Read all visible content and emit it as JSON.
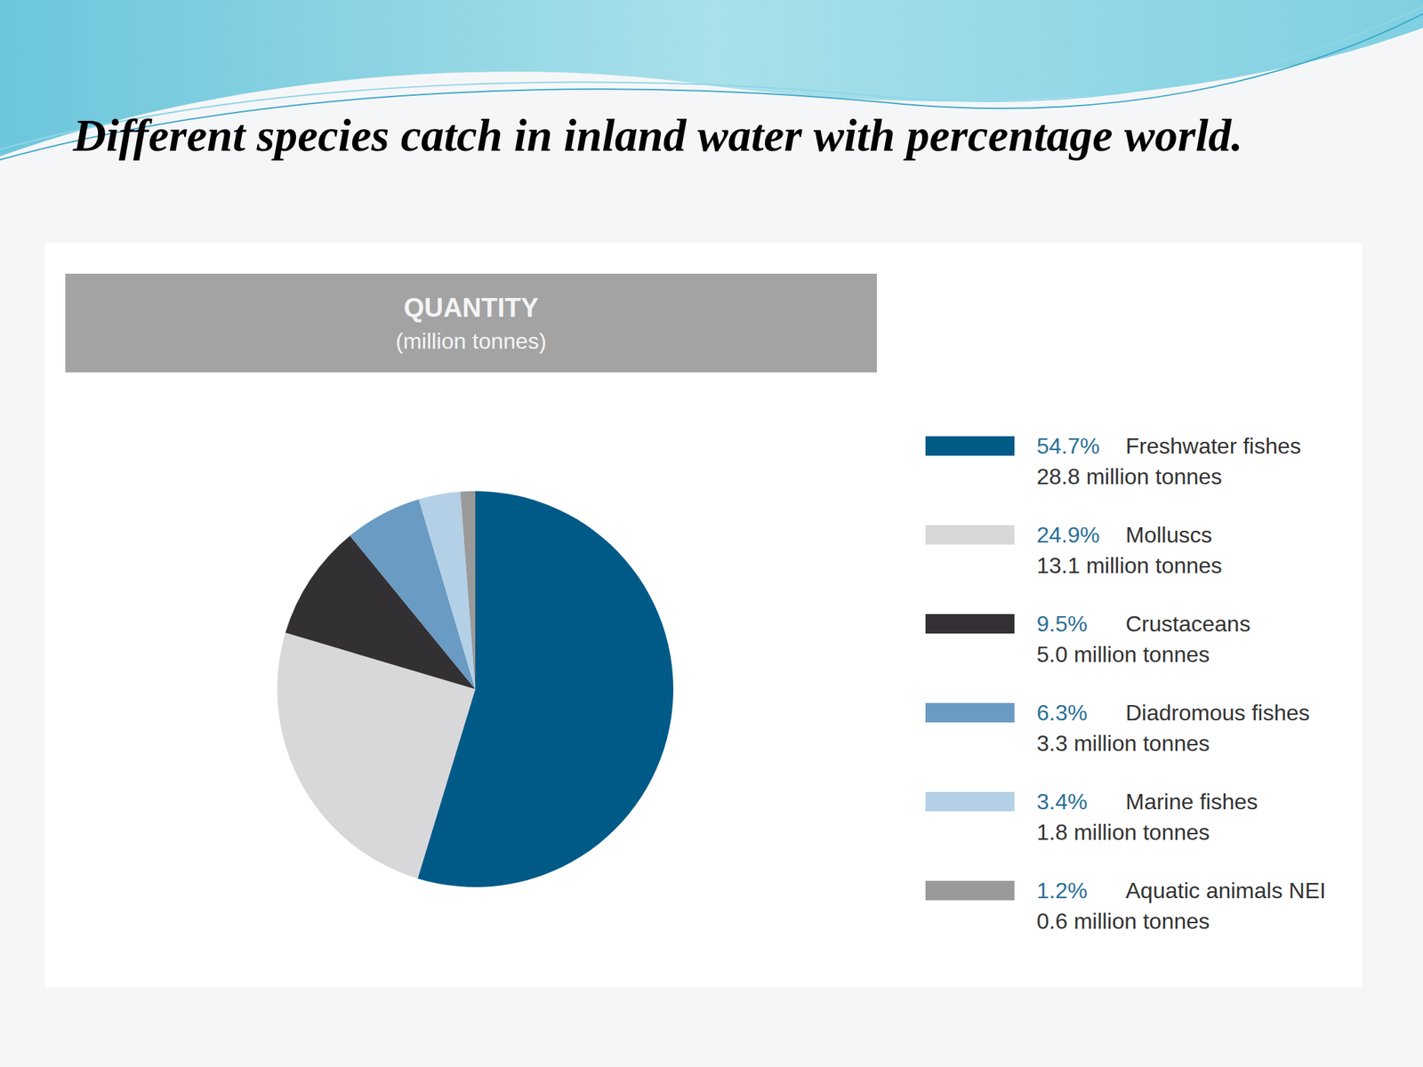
{
  "chart_data": {
    "type": "pie",
    "title": "Different species catch in inland water with percentage world.",
    "panel_title": "QUANTITY",
    "panel_subtitle": "(million tonnes)",
    "categories": [
      "Freshwater fishes",
      "Molluscs",
      "Crustaceans",
      "Diadromous fishes",
      "Marine fishes",
      "Aquatic animals NEI"
    ],
    "values": [
      54.7,
      24.9,
      9.5,
      6.3,
      3.4,
      1.2
    ],
    "value_labels": [
      "54.7%",
      "24.9%",
      "9.5%",
      "6.3%",
      "3.4%",
      "1.2%"
    ],
    "quantity_labels": [
      "28.8 million tonnes",
      "13.1 million tonnes",
      "5.0 million tonnes",
      "3.3 million tonnes",
      "1.8 million tonnes",
      "0.6 million tonnes"
    ],
    "colors": [
      "#005a87",
      "#d8d8da",
      "#333033",
      "#6a9bc3",
      "#b4d0e7",
      "#9a9a9a"
    ],
    "legend": "right"
  }
}
